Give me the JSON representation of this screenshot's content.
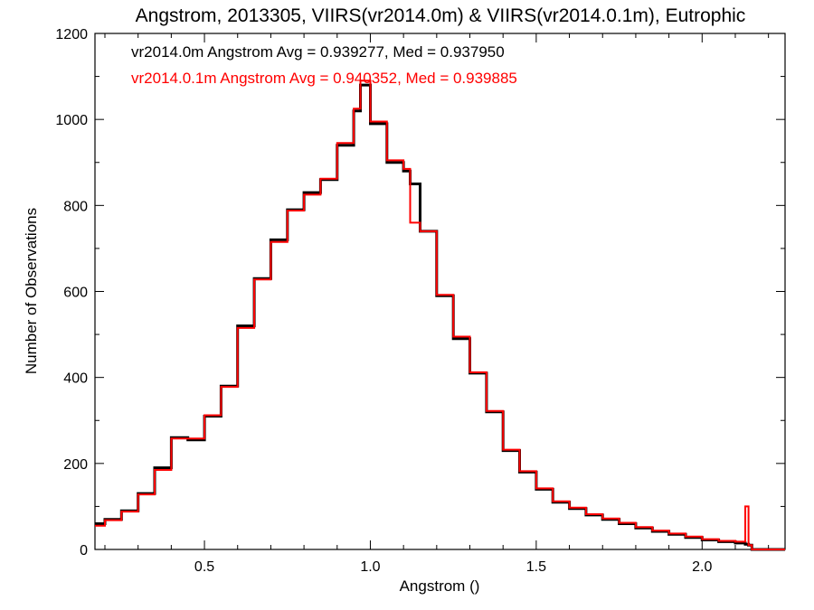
{
  "chart_data": {
    "type": "line",
    "title": "Angstrom, 2013305, VIIRS(vr2014.0m) & VIIRS(vr2014.0.1m), Eutrophic",
    "xlabel": "Angstrom ()",
    "ylabel": "Number of Observations",
    "xlim": [
      0.17,
      2.25
    ],
    "ylim": [
      0,
      1200
    ],
    "xticks": [
      "0.5",
      "1.0",
      "1.5",
      "2.0"
    ],
    "yticks": [
      "0",
      "200",
      "400",
      "600",
      "800",
      "1000",
      "1200"
    ],
    "annotations": [
      "vr2014.0m Angstrom Avg = 0.939277, Med = 0.937950",
      "vr2014.0.1m Angstrom Avg = 0.940352, Med = 0.939885"
    ],
    "colors": {
      "series_a": "#000000",
      "series_b": "#ff0000"
    },
    "x": [
      0.17,
      0.2,
      0.25,
      0.3,
      0.35,
      0.4,
      0.45,
      0.5,
      0.55,
      0.6,
      0.65,
      0.7,
      0.75,
      0.8,
      0.85,
      0.9,
      0.95,
      0.97,
      1.0,
      1.05,
      1.1,
      1.12,
      1.15,
      1.2,
      1.25,
      1.3,
      1.35,
      1.4,
      1.45,
      1.5,
      1.55,
      1.6,
      1.65,
      1.7,
      1.75,
      1.8,
      1.85,
      1.9,
      1.95,
      2.0,
      2.05,
      2.1,
      2.13,
      2.14,
      2.15,
      2.25
    ],
    "series": [
      {
        "values": [
          60,
          70,
          90,
          130,
          190,
          260,
          255,
          310,
          380,
          520,
          630,
          720,
          790,
          830,
          860,
          940,
          1020,
          1080,
          990,
          900,
          880,
          850,
          740,
          590,
          490,
          410,
          320,
          230,
          180,
          140,
          110,
          95,
          80,
          70,
          60,
          50,
          42,
          35,
          28,
          22,
          18,
          15,
          12,
          10,
          0,
          0
        ]
      },
      {
        "values": [
          55,
          68,
          88,
          128,
          185,
          258,
          258,
          312,
          378,
          515,
          628,
          715,
          788,
          825,
          862,
          945,
          1025,
          1090,
          995,
          905,
          885,
          760,
          740,
          592,
          495,
          412,
          322,
          232,
          182,
          142,
          112,
          97,
          82,
          72,
          62,
          52,
          44,
          37,
          30,
          24,
          20,
          18,
          100,
          10,
          0,
          0
        ]
      }
    ]
  }
}
